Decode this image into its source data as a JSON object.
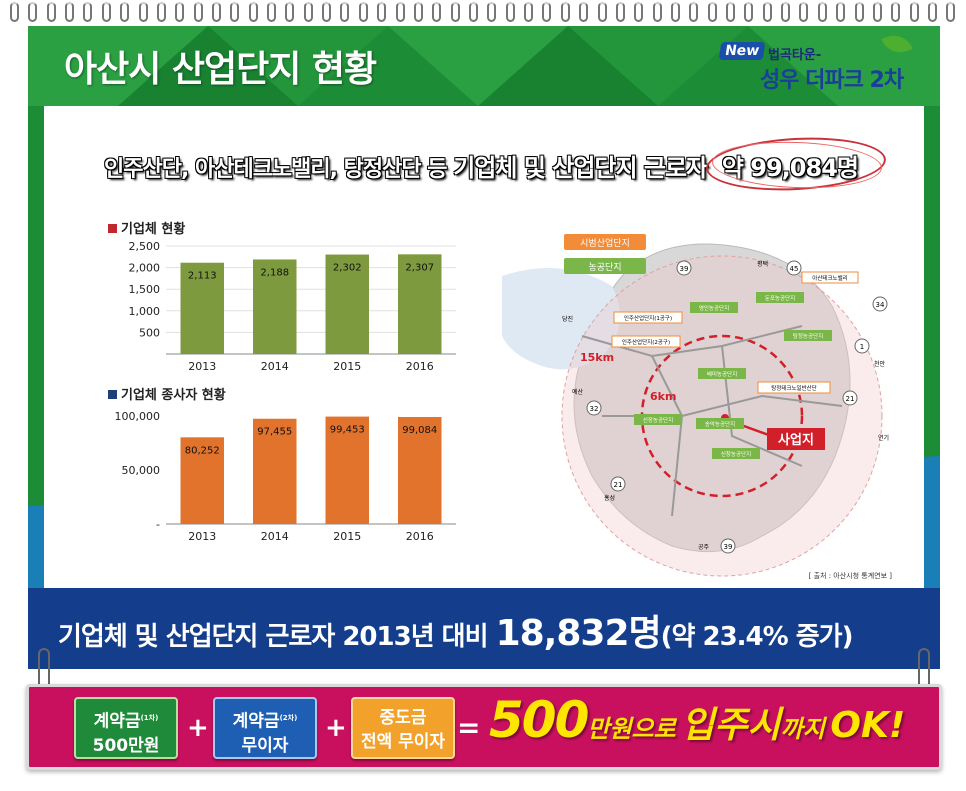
{
  "header": {
    "title": "아산시 산업단지 현황",
    "logo_new": "New",
    "logo_sub": "법곡타운-",
    "logo_main": "성우 더파크 2차"
  },
  "headline": {
    "part1": "인주산단, 아산테크노밸리, 탕정산단 등",
    "part2": "기업체 및 산업단지 근로자",
    "part3": "약 99,084명"
  },
  "charts": {
    "companies_title": "기업체 현황",
    "employees_title": "기업체 종사자 현황"
  },
  "chart_data": [
    {
      "type": "bar",
      "title": "기업체 현황",
      "categories": [
        "2013",
        "2014",
        "2015",
        "2016"
      ],
      "values": [
        2113,
        2188,
        2302,
        2307
      ],
      "value_labels": [
        "2,113",
        "2,188",
        "2,302",
        "2,307"
      ],
      "yticks": [
        "2,500",
        "2,000",
        "1,500",
        "1,000",
        "500"
      ],
      "ylim": [
        0,
        2500
      ],
      "color": "#7e9a3f",
      "grid": true
    },
    {
      "type": "bar",
      "title": "기업체 종사자 현황",
      "categories": [
        "2013",
        "2014",
        "2015",
        "2016"
      ],
      "values": [
        80252,
        97455,
        99453,
        99084
      ],
      "value_labels": [
        "80,252",
        "97,455",
        "99,453",
        "99,084"
      ],
      "yticks": [
        "100,000",
        "50,000",
        "-"
      ],
      "ylim": [
        0,
        100000
      ],
      "color": "#e2732d",
      "grid": false
    }
  ],
  "map": {
    "legend_1": "시범산업단지",
    "legend_2": "농공단지",
    "label_15km": "15km",
    "label_6km": "6km",
    "site_label": "사업지",
    "source": "[ 출처 : 아산시청 통계연보 ]",
    "route_39": "39",
    "route_45": "45",
    "route_34": "34",
    "route_1": "1",
    "route_21": "21",
    "route_32": "32",
    "route_39b": "39",
    "route_21b": "21",
    "city_pyeongtaek": "평택",
    "city_dangjin": "당진",
    "city_cheonan": "천안",
    "city_yesan": "예산",
    "city_yeongi": "연기",
    "city_hongseong": "홍성",
    "city_gongju": "공주",
    "site_technovalley": "아산테크노밸리",
    "site_inju1": "인주산업단지(1공구)",
    "site_inju2": "인주산업단지(2공구)",
    "site_yeongin": "영인농공단지",
    "site_dunpo": "둔포농공단지",
    "site_tangjeong": "탕정농공단지",
    "site_baeksam": "배미농공단지",
    "site_tangjeong_tech": "탕정테크노일반산단",
    "site_seonjang": "선장농공단지",
    "site_songak": "송악농공단지",
    "site_sinchang": "신창농공단지"
  },
  "bottom": {
    "part1": "기업체 및 산업단지 근로자 2013년 대비",
    "part2": "18,832명",
    "part3": "(약 23.4% 증가)"
  },
  "promo": {
    "box1_line1": "계약금",
    "box1_sup": "(1차)",
    "box1_line2": "500만원",
    "box2_line1": "계약금",
    "box2_sup": "(2차)",
    "box2_line2": "무이자",
    "box3_line1": "중도금",
    "box3_line2": "전액 무이자",
    "plus": "+",
    "equals": "=",
    "result_num": "500",
    "result_mid": "만원으로",
    "result_big": "입주시",
    "result_small": "까지",
    "result_ok": "OK!"
  },
  "colors": {
    "board_green": "#1c8f34",
    "bottom_blue": "#143e8c",
    "promo_pink": "#c8105f",
    "box_green": "#1f8a3a",
    "box_blue": "#1e5fb4",
    "box_orange": "#f2a12a",
    "result_yellow": "#ffe600"
  }
}
